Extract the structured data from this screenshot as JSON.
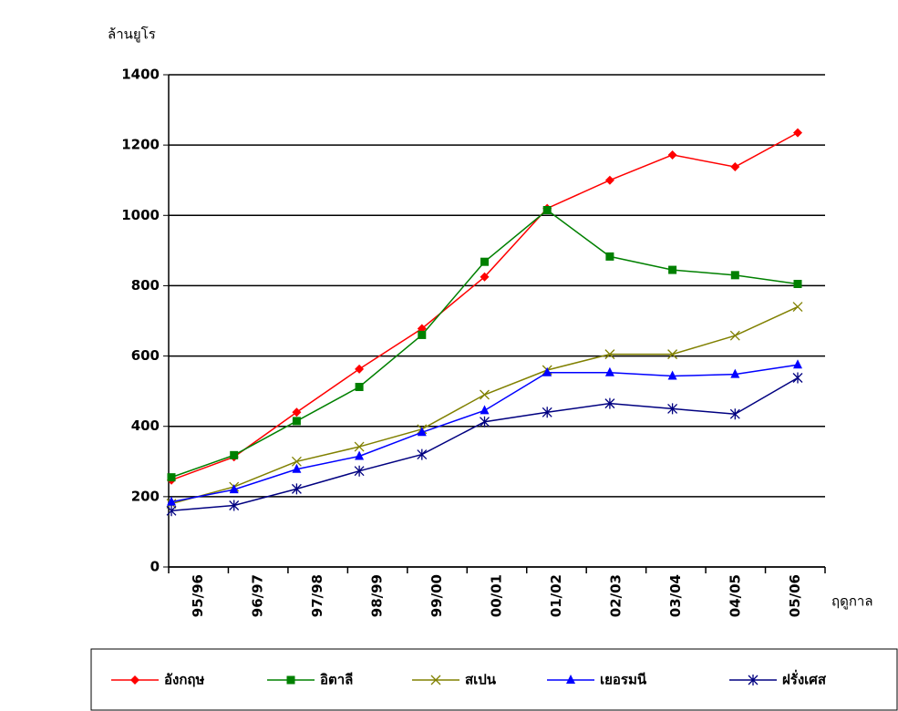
{
  "chart_data": {
    "type": "line",
    "y_label": "ล้านยูโร",
    "x_label": "ฤดูกาล",
    "categories": [
      "95/96",
      "96/97",
      "97/98",
      "98/99",
      "99/00",
      "00/01",
      "01/02",
      "02/03",
      "03/04",
      "04/05",
      "05/06"
    ],
    "series": [
      {
        "name": "อังกฤษ",
        "color": "#ff0000",
        "marker": "diamond",
        "values": [
          247,
          313,
          440,
          563,
          678,
          825,
          1020,
          1100,
          1172,
          1138,
          1235
        ]
      },
      {
        "name": "อิตาลี",
        "color": "#008000",
        "marker": "square",
        "values": [
          255,
          318,
          415,
          512,
          660,
          868,
          1015,
          883,
          845,
          830,
          805
        ]
      },
      {
        "name": "สเปน",
        "color": "#808000",
        "marker": "x",
        "values": [
          180,
          228,
          300,
          342,
          392,
          490,
          560,
          605,
          605,
          658,
          740
        ]
      },
      {
        "name": "เยอรมนี",
        "color": "#0000ff",
        "marker": "triangle",
        "values": [
          185,
          220,
          278,
          315,
          383,
          445,
          553,
          553,
          543,
          548,
          575
        ]
      },
      {
        "name": "ฝรั่งเศส",
        "color": "#000080",
        "marker": "asterisk",
        "values": [
          160,
          175,
          222,
          273,
          320,
          413,
          440,
          465,
          450,
          435,
          538
        ]
      }
    ],
    "ylim": [
      0,
      1400
    ],
    "yticks": [
      0,
      200,
      400,
      600,
      800,
      1000,
      1200,
      1400
    ],
    "grid": true,
    "legend": "bottom"
  }
}
